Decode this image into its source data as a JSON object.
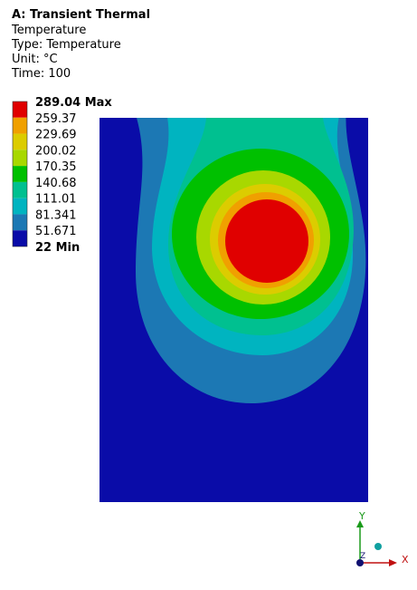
{
  "header": {
    "title": "A: Transient Thermal",
    "lines": [
      "Temperature",
      "Type: Temperature",
      "Unit: °C",
      "Time: 100"
    ]
  },
  "legend": {
    "labels": [
      "289.04 Max",
      "259.37",
      "229.69",
      "200.02",
      "170.35",
      "140.68",
      "111.01",
      "81.341",
      "51.671",
      "22 Min"
    ],
    "colors": [
      "#e00000",
      "#f0a000",
      "#dccc00",
      "#a8d800",
      "#00c000",
      "#00c090",
      "#00b4c0",
      "#1c78b4",
      "#0a0ca8"
    ]
  },
  "axes": {
    "y": "Y",
    "x": "X",
    "z": "Z"
  }
}
